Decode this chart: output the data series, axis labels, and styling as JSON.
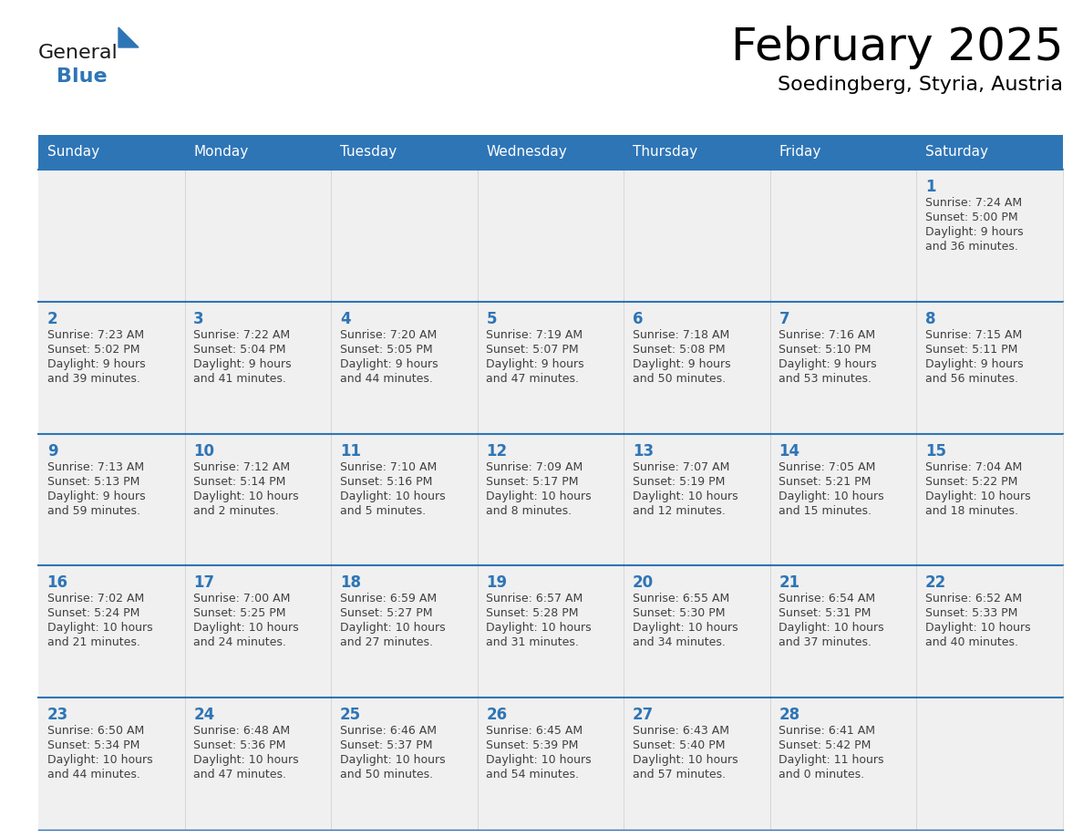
{
  "title": "February 2025",
  "subtitle": "Soedingberg, Styria, Austria",
  "days_of_week": [
    "Sunday",
    "Monday",
    "Tuesday",
    "Wednesday",
    "Thursday",
    "Friday",
    "Saturday"
  ],
  "header_bg": "#2E75B6",
  "header_text": "#FFFFFF",
  "cell_bg": "#F0F0F0",
  "day_num_color": "#2E75B6",
  "text_color": "#404040",
  "line_color": "#2E75B6",
  "border_color": "#AAAAAA",
  "calendar_data": {
    "1": {
      "sunrise": "7:24 AM",
      "sunset": "5:00 PM",
      "daylight_h": "9 hours",
      "daylight_m": "36 minutes."
    },
    "2": {
      "sunrise": "7:23 AM",
      "sunset": "5:02 PM",
      "daylight_h": "9 hours",
      "daylight_m": "39 minutes."
    },
    "3": {
      "sunrise": "7:22 AM",
      "sunset": "5:04 PM",
      "daylight_h": "9 hours",
      "daylight_m": "41 minutes."
    },
    "4": {
      "sunrise": "7:20 AM",
      "sunset": "5:05 PM",
      "daylight_h": "9 hours",
      "daylight_m": "44 minutes."
    },
    "5": {
      "sunrise": "7:19 AM",
      "sunset": "5:07 PM",
      "daylight_h": "9 hours",
      "daylight_m": "47 minutes."
    },
    "6": {
      "sunrise": "7:18 AM",
      "sunset": "5:08 PM",
      "daylight_h": "9 hours",
      "daylight_m": "50 minutes."
    },
    "7": {
      "sunrise": "7:16 AM",
      "sunset": "5:10 PM",
      "daylight_h": "9 hours",
      "daylight_m": "53 minutes."
    },
    "8": {
      "sunrise": "7:15 AM",
      "sunset": "5:11 PM",
      "daylight_h": "9 hours",
      "daylight_m": "56 minutes."
    },
    "9": {
      "sunrise": "7:13 AM",
      "sunset": "5:13 PM",
      "daylight_h": "9 hours",
      "daylight_m": "59 minutes."
    },
    "10": {
      "sunrise": "7:12 AM",
      "sunset": "5:14 PM",
      "daylight_h": "10 hours",
      "daylight_m": "2 minutes."
    },
    "11": {
      "sunrise": "7:10 AM",
      "sunset": "5:16 PM",
      "daylight_h": "10 hours",
      "daylight_m": "5 minutes."
    },
    "12": {
      "sunrise": "7:09 AM",
      "sunset": "5:17 PM",
      "daylight_h": "10 hours",
      "daylight_m": "8 minutes."
    },
    "13": {
      "sunrise": "7:07 AM",
      "sunset": "5:19 PM",
      "daylight_h": "10 hours",
      "daylight_m": "12 minutes."
    },
    "14": {
      "sunrise": "7:05 AM",
      "sunset": "5:21 PM",
      "daylight_h": "10 hours",
      "daylight_m": "15 minutes."
    },
    "15": {
      "sunrise": "7:04 AM",
      "sunset": "5:22 PM",
      "daylight_h": "10 hours",
      "daylight_m": "18 minutes."
    },
    "16": {
      "sunrise": "7:02 AM",
      "sunset": "5:24 PM",
      "daylight_h": "10 hours",
      "daylight_m": "21 minutes."
    },
    "17": {
      "sunrise": "7:00 AM",
      "sunset": "5:25 PM",
      "daylight_h": "10 hours",
      "daylight_m": "24 minutes."
    },
    "18": {
      "sunrise": "6:59 AM",
      "sunset": "5:27 PM",
      "daylight_h": "10 hours",
      "daylight_m": "27 minutes."
    },
    "19": {
      "sunrise": "6:57 AM",
      "sunset": "5:28 PM",
      "daylight_h": "10 hours",
      "daylight_m": "31 minutes."
    },
    "20": {
      "sunrise": "6:55 AM",
      "sunset": "5:30 PM",
      "daylight_h": "10 hours",
      "daylight_m": "34 minutes."
    },
    "21": {
      "sunrise": "6:54 AM",
      "sunset": "5:31 PM",
      "daylight_h": "10 hours",
      "daylight_m": "37 minutes."
    },
    "22": {
      "sunrise": "6:52 AM",
      "sunset": "5:33 PM",
      "daylight_h": "10 hours",
      "daylight_m": "40 minutes."
    },
    "23": {
      "sunrise": "6:50 AM",
      "sunset": "5:34 PM",
      "daylight_h": "10 hours",
      "daylight_m": "44 minutes."
    },
    "24": {
      "sunrise": "6:48 AM",
      "sunset": "5:36 PM",
      "daylight_h": "10 hours",
      "daylight_m": "47 minutes."
    },
    "25": {
      "sunrise": "6:46 AM",
      "sunset": "5:37 PM",
      "daylight_h": "10 hours",
      "daylight_m": "50 minutes."
    },
    "26": {
      "sunrise": "6:45 AM",
      "sunset": "5:39 PM",
      "daylight_h": "10 hours",
      "daylight_m": "54 minutes."
    },
    "27": {
      "sunrise": "6:43 AM",
      "sunset": "5:40 PM",
      "daylight_h": "10 hours",
      "daylight_m": "57 minutes."
    },
    "28": {
      "sunrise": "6:41 AM",
      "sunset": "5:42 PM",
      "daylight_h": "11 hours",
      "daylight_m": "0 minutes."
    }
  },
  "calendar_layout": [
    [
      null,
      null,
      null,
      null,
      null,
      null,
      1
    ],
    [
      2,
      3,
      4,
      5,
      6,
      7,
      8
    ],
    [
      9,
      10,
      11,
      12,
      13,
      14,
      15
    ],
    [
      16,
      17,
      18,
      19,
      20,
      21,
      22
    ],
    [
      23,
      24,
      25,
      26,
      27,
      28,
      null
    ]
  ]
}
